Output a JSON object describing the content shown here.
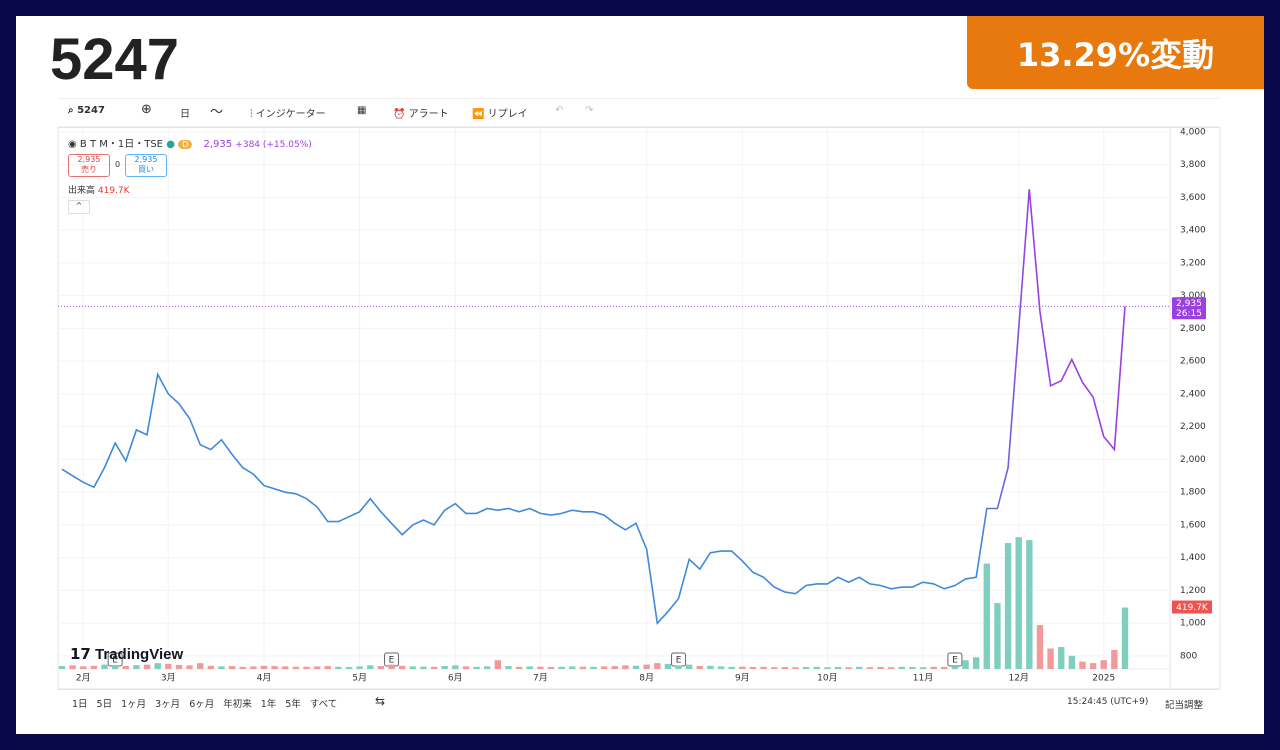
{
  "header": {
    "title": "5247",
    "badge": "13.29%変動"
  },
  "toolbar": {
    "symbol": "5247",
    "interval": "日",
    "indicators": "インジケーター",
    "alerts": "アラート",
    "replay": "リプレイ"
  },
  "legend": {
    "symbol": "B T M・1日・TSE",
    "flag": "D",
    "change": "+384 (+15.05%)",
    "sell_price": "2,935",
    "sell": "売り",
    "spread": "0",
    "buy_price": "2,935",
    "buy": "買い",
    "volume_label": "出来高"
  },
  "logo": "TradingView",
  "footer": {
    "ranges": [
      "1日",
      "5日",
      "1ヶ月",
      "3ヶ月",
      "6ヶ月",
      "年初来",
      "1年",
      "5年",
      "すべて"
    ],
    "time": "15:24:45 (UTC+9)",
    "adjust": "記当調整"
  },
  "chart_data": {
    "type": "line",
    "categories": [
      null,
      null,
      "2月",
      null,
      null,
      null,
      null,
      null,
      null,
      null,
      "3月",
      null,
      null,
      null,
      null,
      null,
      null,
      null,
      null,
      "4月",
      null,
      null,
      null,
      null,
      null,
      null,
      null,
      null,
      "5月",
      null,
      null,
      null,
      null,
      null,
      null,
      null,
      null,
      "6月",
      null,
      null,
      null,
      null,
      null,
      null,
      null,
      "7月",
      null,
      null,
      null,
      null,
      null,
      null,
      null,
      null,
      null,
      "8月",
      null,
      null,
      null,
      null,
      null,
      null,
      null,
      null,
      "9月",
      null,
      null,
      null,
      null,
      null,
      null,
      null,
      "10月",
      null,
      null,
      null,
      null,
      null,
      null,
      null,
      null,
      "11月",
      null,
      null,
      null,
      null,
      null,
      null,
      null,
      null,
      "12月",
      null,
      null,
      null,
      null,
      null,
      null,
      null,
      "2025",
      null,
      null
    ],
    "events": [
      null,
      null,
      null,
      null,
      null,
      "E",
      null,
      null,
      null,
      null,
      null,
      null,
      null,
      null,
      null,
      null,
      null,
      null,
      null,
      null,
      null,
      null,
      null,
      null,
      null,
      null,
      null,
      null,
      null,
      null,
      null,
      "E",
      null,
      null,
      null,
      null,
      null,
      null,
      null,
      null,
      null,
      null,
      null,
      null,
      null,
      null,
      null,
      null,
      null,
      null,
      null,
      null,
      null,
      null,
      null,
      null,
      null,
      null,
      "E",
      null,
      null,
      null,
      null,
      null,
      null,
      null,
      null,
      null,
      null,
      null,
      null,
      null,
      null,
      null,
      null,
      null,
      null,
      null,
      null,
      null,
      null,
      null,
      null,
      null,
      "E",
      null,
      null,
      null,
      null,
      null,
      null,
      null,
      null,
      null,
      null,
      null,
      null,
      null,
      null,
      null,
      null
    ],
    "series": [
      {
        "color": "#3f8ad8",
        "color_end": "#9a40e0",
        "last_label": "2,935",
        "countdown": "26:15",
        "values": [
          1940,
          1900,
          1860,
          1830,
          1950,
          2100,
          1990,
          2180,
          2150,
          2520,
          2400,
          2340,
          2250,
          2090,
          2060,
          2120,
          2030,
          1950,
          1910,
          1840,
          1820,
          1800,
          1790,
          1760,
          1710,
          1620,
          1620,
          1650,
          1680,
          1760,
          1680,
          1610,
          1540,
          1600,
          1630,
          1600,
          1690,
          1730,
          1670,
          1670,
          1700,
          1690,
          1700,
          1680,
          1700,
          1670,
          1660,
          1670,
          1690,
          1680,
          1680,
          1660,
          1610,
          1570,
          1610,
          1450,
          1000,
          1070,
          1150,
          1390,
          1330,
          1430,
          1440,
          1440,
          1380,
          1310,
          1280,
          1220,
          1190,
          1180,
          1230,
          1240,
          1240,
          1280,
          1250,
          1280,
          1240,
          1230,
          1210,
          1220,
          1220,
          1250,
          1240,
          1210,
          1230,
          1270,
          1280,
          1700,
          1700,
          1950,
          2800,
          3650,
          2900,
          2450,
          2480,
          2610,
          2470,
          2380,
          2140,
          2060,
          2935
        ]
      },
      {
        "type": "bar",
        "axis": "y2",
        "up_color": "#7fcfc0",
        "down_color": "#f29a9a",
        "last_label": "419.7K",
        "values": [
          20,
          25,
          18,
          22,
          30,
          28,
          20,
          26,
          30,
          40,
          35,
          28,
          25,
          40,
          22,
          18,
          20,
          15,
          18,
          22,
          20,
          18,
          15,
          16,
          18,
          20,
          15,
          14,
          18,
          25,
          20,
          30,
          22,
          18,
          16,
          15,
          20,
          25,
          18,
          15,
          18,
          60,
          20,
          15,
          18,
          16,
          14,
          15,
          18,
          16,
          15,
          18,
          20,
          25,
          22,
          30,
          40,
          35,
          25,
          30,
          20,
          22,
          18,
          15,
          16,
          14,
          15,
          12,
          14,
          12,
          14,
          15,
          12,
          14,
          12,
          15,
          12,
          14,
          12,
          15,
          14,
          12,
          15,
          14,
          20,
          60,
          80,
          720,
          450,
          860,
          900,
          880,
          300,
          140,
          150,
          90,
          50,
          40,
          60,
          130,
          419.7
        ]
      }
    ],
    "ylim": [
      720,
      4030
    ],
    "yticks": [
      {
        "value": 4000,
        "label": "4,000"
      },
      {
        "value": 3800,
        "label": "3,800"
      },
      {
        "value": 3600,
        "label": "3,600"
      },
      {
        "value": 3400,
        "label": "3,400"
      },
      {
        "value": 3200,
        "label": "3,200"
      },
      {
        "value": 3000,
        "label": "3,000"
      },
      {
        "value": 2800,
        "label": "2,800"
      },
      {
        "value": 2600,
        "label": "2,600"
      },
      {
        "value": 2400,
        "label": "2,400"
      },
      {
        "value": 2200,
        "label": "2,200"
      },
      {
        "value": 2000,
        "label": "2,000"
      },
      {
        "value": 1800,
        "label": "1,800"
      },
      {
        "value": 1600,
        "label": "1,600"
      },
      {
        "value": 1400,
        "label": "1,400"
      },
      {
        "value": 1200,
        "label": "1,200"
      },
      {
        "value": 1000,
        "label": "1,000"
      },
      800
    ],
    "y2lim": [
      0,
      3700
    ],
    "grid": true,
    "price_line": true
  }
}
